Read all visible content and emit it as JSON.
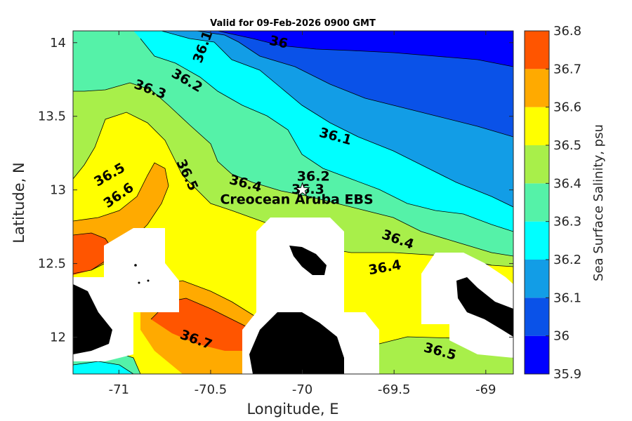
{
  "chart_data": {
    "type": "contour",
    "title": "Valid for 09-Feb-2026 0900 GMT",
    "xlabel": "Longitude, E",
    "ylabel": "Latitude, N",
    "xlim": [
      -71.25,
      -68.85
    ],
    "ylim": [
      11.75,
      14.08
    ],
    "xticks": [
      "-71",
      "-70.5",
      "-70",
      "-69.5",
      "-69"
    ],
    "yticks": [
      "12",
      "12.5",
      "13",
      "13.5",
      "14"
    ],
    "colorbar": {
      "label": "Sea Surface Salinity, psu",
      "ticks": [
        "35.9",
        "36",
        "36.1",
        "36.2",
        "36.3",
        "36.4",
        "36.5",
        "36.6",
        "36.7",
        "36.8"
      ],
      "colors": [
        "#0000ff",
        "#0a52e8",
        "#129de6",
        "#00ffff",
        "#55f2a8",
        "#a8ef4a",
        "#ffff00",
        "#ffaa00",
        "#ff5500"
      ]
    },
    "contour_labels": [
      {
        "text": "36",
        "lon": -70.13,
        "lat": 14.0
      },
      {
        "text": "36.1",
        "lon": -70.54,
        "lat": 13.97
      },
      {
        "text": "36.2",
        "lon": -70.63,
        "lat": 13.74
      },
      {
        "text": "36.3",
        "lon": -70.83,
        "lat": 13.68
      },
      {
        "text": "36.1",
        "lon": -69.82,
        "lat": 13.36
      },
      {
        "text": "36.5",
        "lon": -71.05,
        "lat": 13.1
      },
      {
        "text": "36.6",
        "lon": -71.0,
        "lat": 12.96
      },
      {
        "text": "36.5",
        "lon": -70.63,
        "lat": 13.1
      },
      {
        "text": "36.4",
        "lon": -70.31,
        "lat": 13.04
      },
      {
        "text": "36.2",
        "lon": -69.94,
        "lat": 13.09
      },
      {
        "text": "36.3",
        "lon": -69.97,
        "lat": 13.0
      },
      {
        "text": "36.4",
        "lon": -69.48,
        "lat": 12.66
      },
      {
        "text": "36.4",
        "lon": -69.55,
        "lat": 12.47
      },
      {
        "text": "36.7",
        "lon": -70.58,
        "lat": 11.98
      },
      {
        "text": "36.5",
        "lon": -69.25,
        "lat": 11.9
      }
    ],
    "station": {
      "name": "Creocean Aruba EBS",
      "lon": -70.0,
      "lat": 13.0
    }
  }
}
